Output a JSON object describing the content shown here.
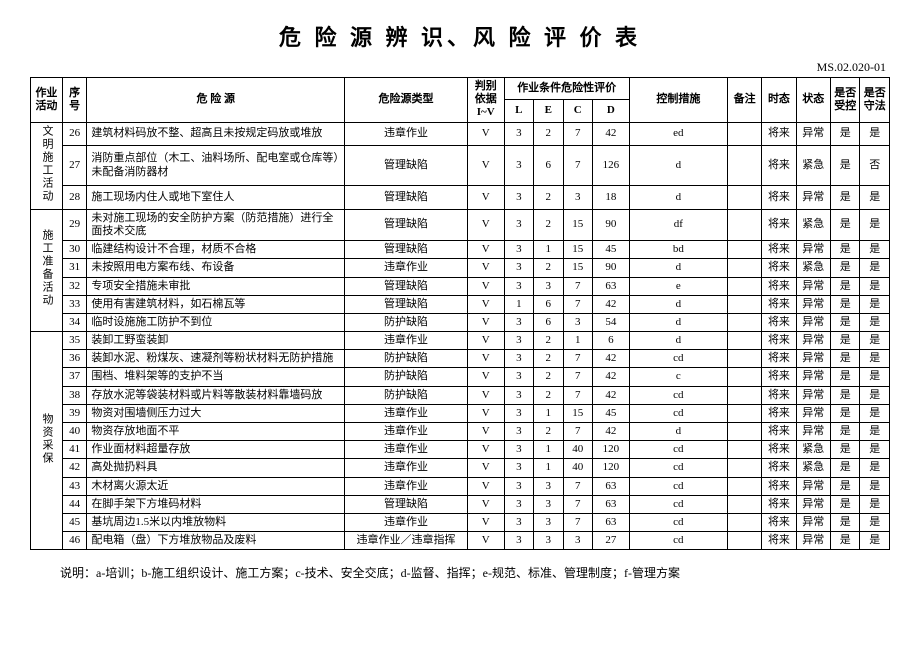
{
  "title": "危 险 源 辨 识、风 险 评 价 表",
  "docCode": "MS.02.020-01",
  "header": {
    "activity": "作业活动",
    "seq": "序号",
    "hazard": "危 险 源",
    "type": "危险源类型",
    "basis": "判别依据I~V",
    "eval": "作业条件危险性评价",
    "L": "L",
    "E": "E",
    "C": "C",
    "D": "D",
    "ctrl": "控制措施",
    "note": "备注",
    "time": "时态",
    "state": "状态",
    "yn1": "是否受控",
    "yn2": "是否守法"
  },
  "groups": [
    {
      "activity": "文明施工活动",
      "rows": [
        {
          "seq": "26",
          "hazard": "建筑材料码放不整、超高且未按规定码放或堆放",
          "type": "违章作业",
          "basis": "V",
          "L": "3",
          "E": "2",
          "C": "7",
          "D": "42",
          "ctrl": "ed",
          "note": "",
          "time": "将来",
          "state": "异常",
          "yn1": "是",
          "yn2": "是"
        },
        {
          "seq": "27",
          "hazard": "消防重点部位（木工、油料场所、配电室或仓库等）未配备消防器材",
          "type": "管理缺陷",
          "basis": "V",
          "L": "3",
          "E": "6",
          "C": "7",
          "D": "126",
          "ctrl": "d",
          "note": "",
          "time": "将来",
          "state": "紧急",
          "yn1": "是",
          "yn2": "否"
        },
        {
          "seq": "28",
          "hazard": "施工现场内住人或地下室住人",
          "type": "管理缺陷",
          "basis": "V",
          "L": "3",
          "E": "2",
          "C": "3",
          "D": "18",
          "ctrl": "d",
          "note": "",
          "time": "将来",
          "state": "异常",
          "yn1": "是",
          "yn2": "是"
        }
      ]
    },
    {
      "activity": "施工准备活动",
      "rows": [
        {
          "seq": "29",
          "hazard": "未对施工现场的安全防护方案（防范措施）进行全面技术交底",
          "type": "管理缺陷",
          "basis": "V",
          "L": "3",
          "E": "2",
          "C": "15",
          "D": "90",
          "ctrl": "df",
          "note": "",
          "time": "将来",
          "state": "紧急",
          "yn1": "是",
          "yn2": "是"
        },
        {
          "seq": "30",
          "hazard": "临建结构设计不合理，材质不合格",
          "type": "管理缺陷",
          "basis": "V",
          "L": "3",
          "E": "1",
          "C": "15",
          "D": "45",
          "ctrl": "bd",
          "note": "",
          "time": "将来",
          "state": "异常",
          "yn1": "是",
          "yn2": "是"
        },
        {
          "seq": "31",
          "hazard": "未按照用电方案布线、布设备",
          "type": "违章作业",
          "basis": "V",
          "L": "3",
          "E": "2",
          "C": "15",
          "D": "90",
          "ctrl": "d",
          "note": "",
          "time": "将来",
          "state": "紧急",
          "yn1": "是",
          "yn2": "是"
        },
        {
          "seq": "32",
          "hazard": "专项安全措施未审批",
          "type": "管理缺陷",
          "basis": "V",
          "L": "3",
          "E": "3",
          "C": "7",
          "D": "63",
          "ctrl": "e",
          "note": "",
          "time": "将来",
          "state": "异常",
          "yn1": "是",
          "yn2": "是"
        },
        {
          "seq": "33",
          "hazard": "使用有害建筑材料，如石棉瓦等",
          "type": "管理缺陷",
          "basis": "V",
          "L": "1",
          "E": "6",
          "C": "7",
          "D": "42",
          "ctrl": "d",
          "note": "",
          "time": "将来",
          "state": "异常",
          "yn1": "是",
          "yn2": "是"
        },
        {
          "seq": "34",
          "hazard": "临时设施施工防护不到位",
          "type": "防护缺陷",
          "basis": "V",
          "L": "3",
          "E": "6",
          "C": "3",
          "D": "54",
          "ctrl": "d",
          "note": "",
          "time": "将来",
          "state": "异常",
          "yn1": "是",
          "yn2": "是"
        }
      ]
    },
    {
      "activity": "物资采保",
      "rows": [
        {
          "seq": "35",
          "hazard": "装卸工野蛮装卸",
          "type": "违章作业",
          "basis": "V",
          "L": "3",
          "E": "2",
          "C": "1",
          "D": "6",
          "ctrl": "d",
          "note": "",
          "time": "将来",
          "state": "异常",
          "yn1": "是",
          "yn2": "是"
        },
        {
          "seq": "36",
          "hazard": "装卸水泥、粉煤灰、速凝剂等粉状材料无防护措施",
          "type": "防护缺陷",
          "basis": "V",
          "L": "3",
          "E": "2",
          "C": "7",
          "D": "42",
          "ctrl": "cd",
          "note": "",
          "time": "将来",
          "state": "异常",
          "yn1": "是",
          "yn2": "是"
        },
        {
          "seq": "37",
          "hazard": "围档、堆料架等的支护不当",
          "type": "防护缺陷",
          "basis": "V",
          "L": "3",
          "E": "2",
          "C": "7",
          "D": "42",
          "ctrl": "c",
          "note": "",
          "time": "将来",
          "state": "异常",
          "yn1": "是",
          "yn2": "是"
        },
        {
          "seq": "38",
          "hazard": "存放水泥等袋装材料或片料等散装材料靠墙码放",
          "type": "防护缺陷",
          "basis": "V",
          "L": "3",
          "E": "2",
          "C": "7",
          "D": "42",
          "ctrl": "cd",
          "note": "",
          "time": "将来",
          "state": "异常",
          "yn1": "是",
          "yn2": "是"
        },
        {
          "seq": "39",
          "hazard": "物资对围墙侧压力过大",
          "type": "违章作业",
          "basis": "V",
          "L": "3",
          "E": "1",
          "C": "15",
          "D": "45",
          "ctrl": "cd",
          "note": "",
          "time": "将来",
          "state": "异常",
          "yn1": "是",
          "yn2": "是"
        },
        {
          "seq": "40",
          "hazard": "物资存放地面不平",
          "type": "违章作业",
          "basis": "V",
          "L": "3",
          "E": "2",
          "C": "7",
          "D": "42",
          "ctrl": "d",
          "note": "",
          "time": "将来",
          "state": "异常",
          "yn1": "是",
          "yn2": "是"
        },
        {
          "seq": "41",
          "hazard": "作业面材料超量存放",
          "type": "违章作业",
          "basis": "V",
          "L": "3",
          "E": "1",
          "C": "40",
          "D": "120",
          "ctrl": "cd",
          "note": "",
          "time": "将来",
          "state": "紧急",
          "yn1": "是",
          "yn2": "是"
        },
        {
          "seq": "42",
          "hazard": "高处抛扔料具",
          "type": "违章作业",
          "basis": "V",
          "L": "3",
          "E": "1",
          "C": "40",
          "D": "120",
          "ctrl": "cd",
          "note": "",
          "time": "将来",
          "state": "紧急",
          "yn1": "是",
          "yn2": "是"
        },
        {
          "seq": "43",
          "hazard": "木材离火源太近",
          "type": "违章作业",
          "basis": "V",
          "L": "3",
          "E": "3",
          "C": "7",
          "D": "63",
          "ctrl": "cd",
          "note": "",
          "time": "将来",
          "state": "异常",
          "yn1": "是",
          "yn2": "是"
        },
        {
          "seq": "44",
          "hazard": "在脚手架下方堆码材料",
          "type": "管理缺陷",
          "basis": "V",
          "L": "3",
          "E": "3",
          "C": "7",
          "D": "63",
          "ctrl": "cd",
          "note": "",
          "time": "将来",
          "state": "异常",
          "yn1": "是",
          "yn2": "是"
        },
        {
          "seq": "45",
          "hazard": "基坑周边1.5米以内堆放物料",
          "type": "违章作业",
          "basis": "V",
          "L": "3",
          "E": "3",
          "C": "7",
          "D": "63",
          "ctrl": "cd",
          "note": "",
          "time": "将来",
          "state": "异常",
          "yn1": "是",
          "yn2": "是"
        },
        {
          "seq": "46",
          "hazard": "配电箱（盘）下方堆放物品及废料",
          "type": "违章作业／违章指挥",
          "basis": "V",
          "L": "3",
          "E": "3",
          "C": "3",
          "D": "27",
          "ctrl": "cd",
          "note": "",
          "time": "将来",
          "state": "异常",
          "yn1": "是",
          "yn2": "是"
        }
      ]
    }
  ],
  "footnote": "说明：a-培训；b-施工组织设计、施工方案；c-技术、安全交底；d-监督、指挥；e-规范、标准、管理制度；f-管理方案"
}
